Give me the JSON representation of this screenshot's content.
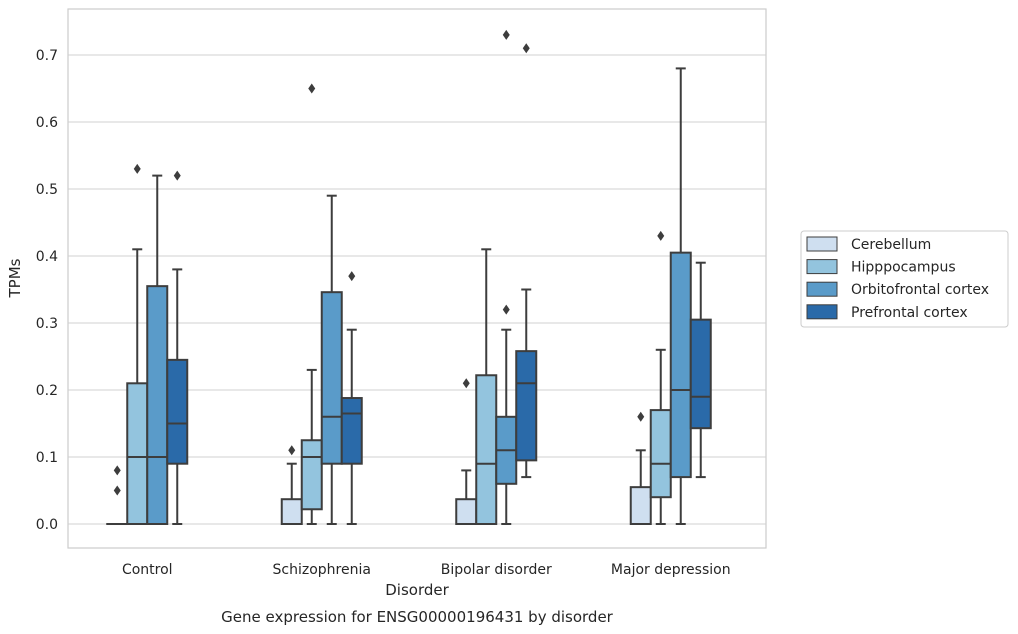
{
  "caption": "Gene expression for ENSG00000196431 by disorder",
  "chart_data": {
    "type": "box",
    "title": "",
    "xlabel": "Disorder",
    "ylabel": "TPMs",
    "ylim": [
      -0.035,
      0.77
    ],
    "yticks": [
      0.0,
      0.1,
      0.2,
      0.3,
      0.4,
      0.5,
      0.6,
      0.7
    ],
    "ytick_labels": [
      "0.0",
      "0.1",
      "0.2",
      "0.3",
      "0.4",
      "0.5",
      "0.6",
      "0.7"
    ],
    "categories": [
      "Control",
      "Schizophrenia",
      "Bipolar disorder",
      "Major depression"
    ],
    "grid": true,
    "legend_position": "right",
    "series": [
      {
        "name": "Cerebellum",
        "color": "#cfdff0",
        "boxes": [
          {
            "min": 0.0,
            "q1": 0.0,
            "median": 0.0,
            "q3": 0.0,
            "max": 0.0,
            "outliers": [
              0.05,
              0.08
            ]
          },
          {
            "min": 0.0,
            "q1": 0.0,
            "median": 0.0,
            "q3": 0.037,
            "max": 0.09,
            "outliers": [
              0.11
            ]
          },
          {
            "min": 0.0,
            "q1": 0.0,
            "median": 0.0,
            "q3": 0.037,
            "max": 0.08,
            "outliers": [
              0.21
            ]
          },
          {
            "min": 0.0,
            "q1": 0.0,
            "median": 0.0,
            "q3": 0.055,
            "max": 0.11,
            "outliers": [
              0.16
            ]
          }
        ]
      },
      {
        "name": "Hipppocampus",
        "color": "#93c4de",
        "boxes": [
          {
            "min": 0.0,
            "q1": 0.0,
            "median": 0.1,
            "q3": 0.21,
            "max": 0.41,
            "outliers": [
              0.53
            ]
          },
          {
            "min": 0.0,
            "q1": 0.022,
            "median": 0.1,
            "q3": 0.125,
            "max": 0.23,
            "outliers": [
              0.65
            ]
          },
          {
            "min": 0.0,
            "q1": 0.0,
            "median": 0.09,
            "q3": 0.222,
            "max": 0.41,
            "outliers": []
          },
          {
            "min": 0.0,
            "q1": 0.04,
            "median": 0.09,
            "q3": 0.17,
            "max": 0.26,
            "outliers": [
              0.43
            ]
          }
        ]
      },
      {
        "name": "Orbitofrontal cortex",
        "color": "#5a9bc9",
        "boxes": [
          {
            "min": 0.0,
            "q1": 0.0,
            "median": 0.1,
            "q3": 0.355,
            "max": 0.52,
            "outliers": []
          },
          {
            "min": 0.0,
            "q1": 0.09,
            "median": 0.16,
            "q3": 0.346,
            "max": 0.49,
            "outliers": []
          },
          {
            "min": 0.0,
            "q1": 0.06,
            "median": 0.11,
            "q3": 0.16,
            "max": 0.29,
            "outliers": [
              0.32,
              0.73
            ]
          },
          {
            "min": 0.0,
            "q1": 0.07,
            "median": 0.2,
            "q3": 0.405,
            "max": 0.68,
            "outliers": []
          }
        ]
      },
      {
        "name": "Prefrontal cortex",
        "color": "#2a6aa9",
        "boxes": [
          {
            "min": 0.0,
            "q1": 0.09,
            "median": 0.15,
            "q3": 0.245,
            "max": 0.38,
            "outliers": [
              0.52
            ]
          },
          {
            "min": 0.0,
            "q1": 0.09,
            "median": 0.165,
            "q3": 0.188,
            "max": 0.29,
            "outliers": [
              0.37
            ]
          },
          {
            "min": 0.07,
            "q1": 0.095,
            "median": 0.21,
            "q3": 0.258,
            "max": 0.35,
            "outliers": [
              0.71
            ]
          },
          {
            "min": 0.07,
            "q1": 0.143,
            "median": 0.19,
            "q3": 0.305,
            "max": 0.39,
            "outliers": []
          }
        ]
      }
    ]
  }
}
